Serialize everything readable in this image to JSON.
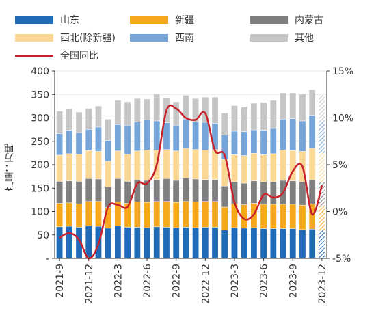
{
  "chart_data": {
    "type": "bar",
    "stacked": true,
    "ylabel": "产量：万吨",
    "y_left": {
      "range": [
        0,
        400
      ],
      "ticks": [
        "-",
        "50",
        "100",
        "150",
        "200",
        "250",
        "300",
        "350",
        "400"
      ]
    },
    "y_right": {
      "range": [
        -5,
        15
      ],
      "ticks": [
        "-5%",
        "0%",
        "5%",
        "10%",
        "15%"
      ]
    },
    "x_tick_labels": [
      "2021-9",
      "2021-12",
      "2022-3",
      "2022-6",
      "2022-9",
      "2022-12",
      "2023-3",
      "2023-6",
      "2023-9",
      "2023-12"
    ],
    "categories": [
      "2021-9",
      "2021-10",
      "2021-11",
      "2021-12",
      "2022-1",
      "2022-2",
      "2022-3",
      "2022-4",
      "2022-5",
      "2022-6",
      "2022-7",
      "2022-8",
      "2022-9",
      "2022-10",
      "2022-11",
      "2022-12",
      "2023-1",
      "2023-2",
      "2023-3",
      "2023-4",
      "2023-5",
      "2023-6",
      "2023-7",
      "2023-8",
      "2023-9",
      "2023-10",
      "2023-11",
      "2023-12"
    ],
    "last_bar_hatched": true,
    "series": [
      {
        "name": "山东",
        "color": "#1f6bb8",
        "values": [
          67,
          68,
          66,
          69,
          68,
          64,
          69,
          66,
          66,
          65,
          67,
          66,
          65,
          66,
          65,
          66,
          66,
          60,
          65,
          64,
          65,
          63,
          63,
          63,
          63,
          61,
          62,
          60
        ]
      },
      {
        "name": "新疆",
        "color": "#f5a81c",
        "values": [
          50,
          50,
          50,
          52,
          53,
          44,
          51,
          51,
          54,
          54,
          54,
          55,
          54,
          55,
          55,
          55,
          55,
          49,
          51,
          50,
          52,
          52,
          52,
          52,
          52,
          52,
          54,
          52
        ]
      },
      {
        "name": "内蒙古",
        "color": "#7f7f7f",
        "values": [
          47,
          47,
          48,
          49,
          48,
          44,
          50,
          47,
          47,
          47,
          47,
          49,
          47,
          50,
          49,
          47,
          47,
          45,
          47,
          46,
          48,
          48,
          48,
          51,
          50,
          50,
          51,
          50
        ]
      },
      {
        "name": "西北(除新疆)",
        "color": "#fbd794",
        "values": [
          56,
          58,
          58,
          60,
          59,
          55,
          59,
          58,
          62,
          65,
          63,
          62,
          63,
          64,
          63,
          63,
          64,
          57,
          58,
          59,
          59,
          58,
          60,
          65,
          65,
          65,
          68,
          63
        ]
      },
      {
        "name": "西南",
        "color": "#76a5d9",
        "values": [
          46,
          50,
          46,
          45,
          52,
          44,
          56,
          62,
          62,
          64,
          62,
          57,
          55,
          62,
          59,
          59,
          56,
          52,
          50,
          51,
          50,
          52,
          54,
          66,
          68,
          65,
          70,
          68
        ]
      },
      {
        "name": "其他",
        "color": "#c6c6c6",
        "values": [
          48,
          46,
          44,
          45,
          45,
          46,
          52,
          50,
          50,
          45,
          57,
          53,
          50,
          51,
          50,
          54,
          56,
          47,
          55,
          54,
          57,
          60,
          60,
          56,
          55,
          57,
          55,
          55
        ]
      },
      {
        "name": "全国同比",
        "type": "line",
        "axis": "right",
        "color": "#c8232c",
        "values": [
          -2.8,
          -2.3,
          -3.0,
          -5.0,
          -3.5,
          0.5,
          0.7,
          0.5,
          3.0,
          3.0,
          5.0,
          10.8,
          11.0,
          10.0,
          9.8,
          10.5,
          6.5,
          6.0,
          1.0,
          -0.8,
          -0.3,
          1.8,
          1.5,
          2.0,
          4.3,
          4.8,
          -0.3,
          2.8
        ]
      }
    ]
  }
}
